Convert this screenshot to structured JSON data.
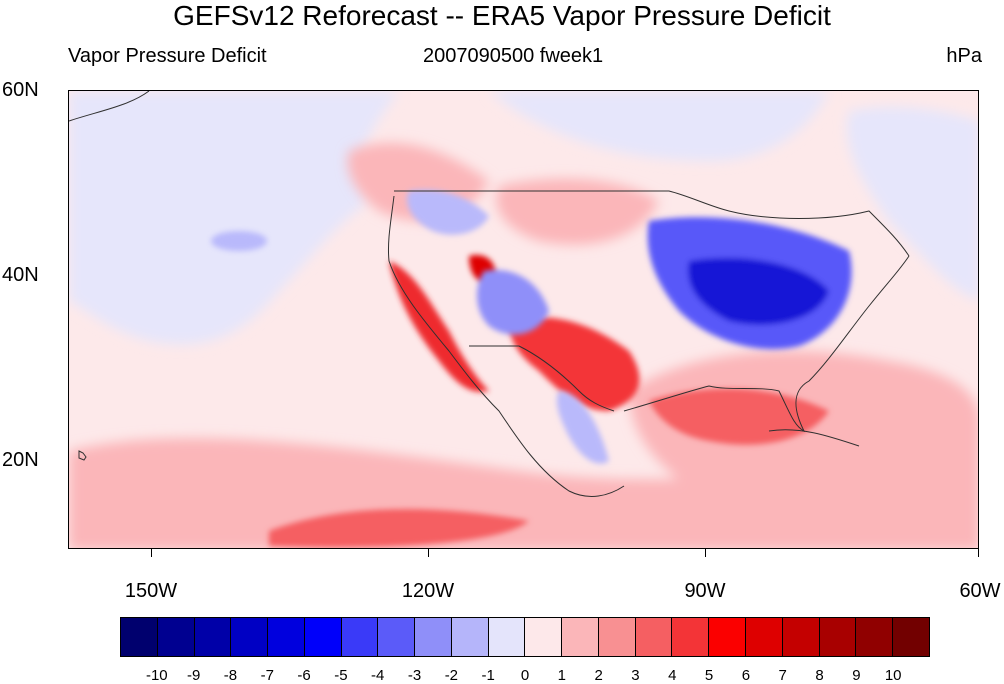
{
  "header": {
    "title": "GEFSv12 Reforecast -- ERA5 Vapor Pressure Deficit",
    "left_subtitle": "Vapor Pressure Deficit",
    "center_subtitle": "2007090500 fweek1",
    "right_subtitle": "hPa"
  },
  "map": {
    "lat_labels": [
      "60N",
      "40N",
      "20N"
    ],
    "lon_labels": [
      "150W",
      "120W",
      "90W",
      "60W"
    ],
    "colors": {
      "ocean_base": "#fde9ea",
      "land_base": "#fde9ea",
      "neutral_low": "#e6e6fb",
      "positive_light": "#fbb6b9",
      "positive_mid": "#f48183",
      "positive_strong": "#ee2a2d",
      "negative_light": "#b9b9fb",
      "negative_mid": "#5858f9",
      "negative_strong": "#1616d6",
      "border_line": "#303030"
    }
  },
  "colorbar": {
    "labels": [
      "-10",
      "-9",
      "-8",
      "-7",
      "-6",
      "-5",
      "-4",
      "-3",
      "-2",
      "-1",
      "0",
      "1",
      "2",
      "3",
      "4",
      "5",
      "6",
      "7",
      "8",
      "9",
      "10"
    ],
    "colors": [
      "#00006e",
      "#000090",
      "#0000a8",
      "#0000c4",
      "#0000de",
      "#0000fa",
      "#3a3af8",
      "#5b5bf9",
      "#8f8ff9",
      "#b5b5fa",
      "#e4e4fb",
      "#fde8ea",
      "#fbb6b9",
      "#f89092",
      "#f55f62",
      "#f33437",
      "#fb0000",
      "#de0000",
      "#c40000",
      "#a80000",
      "#900000",
      "#720000"
    ]
  }
}
